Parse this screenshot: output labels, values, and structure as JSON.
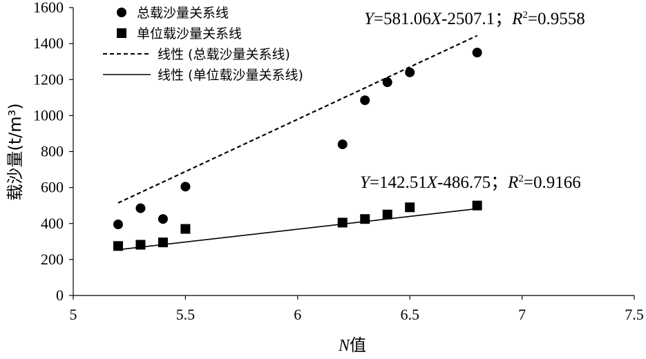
{
  "chart_data": {
    "type": "scatter",
    "xlabel": {
      "var": "N",
      "suffix": "值"
    },
    "ylabel": "载沙量(t/m³)",
    "xlim": [
      5,
      7.5
    ],
    "ylim": [
      0,
      1600
    ],
    "xticks": [
      5,
      5.5,
      6,
      6.5,
      7,
      7.5
    ],
    "yticks": [
      0,
      200,
      400,
      600,
      800,
      1000,
      1200,
      1400,
      1600
    ],
    "xtick_labels": [
      "5",
      "5.5",
      "6",
      "6.5",
      "7",
      "7.5"
    ],
    "ytick_labels": [
      "0",
      "200",
      "400",
      "600",
      "800",
      "1000",
      "1200",
      "1400",
      "1600"
    ],
    "grid": false,
    "legend_position": "top-left",
    "series": [
      {
        "name": "总载沙量关系线",
        "marker": "circle",
        "x": [
          5.2,
          5.3,
          5.4,
          5.5,
          6.2,
          6.3,
          6.4,
          6.5,
          6.8
        ],
        "y": [
          395,
          485,
          425,
          605,
          840,
          1085,
          1185,
          1240,
          1350
        ],
        "trend": {
          "name": "线性 (总载沙量关系线)",
          "slope": 581.06,
          "intercept": -2507.1,
          "style": "dashed",
          "x_range": [
            5.2,
            6.8
          ]
        }
      },
      {
        "name": "单位载沙量关系线",
        "marker": "square",
        "x": [
          5.2,
          5.3,
          5.4,
          5.5,
          6.2,
          6.3,
          6.4,
          6.5,
          6.8
        ],
        "y": [
          275,
          282,
          295,
          370,
          405,
          425,
          450,
          490,
          500
        ],
        "trend": {
          "name": "线性 (单位载沙量关系线)",
          "slope": 142.51,
          "intercept": -486.75,
          "style": "solid",
          "x_range": [
            5.2,
            6.8
          ]
        }
      }
    ],
    "annotations": [
      {
        "target": "总载沙量关系线",
        "parts": [
          {
            "t": "Y",
            "i": true
          },
          {
            "t": "=581.06"
          },
          {
            "t": "X",
            "i": true
          },
          {
            "t": "-2507.1；"
          },
          {
            "t": "R",
            "i": true
          },
          {
            "t": "2",
            "sup": true
          },
          {
            "t": "=0.9558"
          }
        ]
      },
      {
        "target": "单位载沙量关系线",
        "parts": [
          {
            "t": "Y",
            "i": true
          },
          {
            "t": "=142.51"
          },
          {
            "t": "X",
            "i": true
          },
          {
            "t": "-486.75；"
          },
          {
            "t": "R",
            "i": true
          },
          {
            "t": "2",
            "sup": true
          },
          {
            "t": "=0.9166"
          }
        ]
      }
    ]
  }
}
